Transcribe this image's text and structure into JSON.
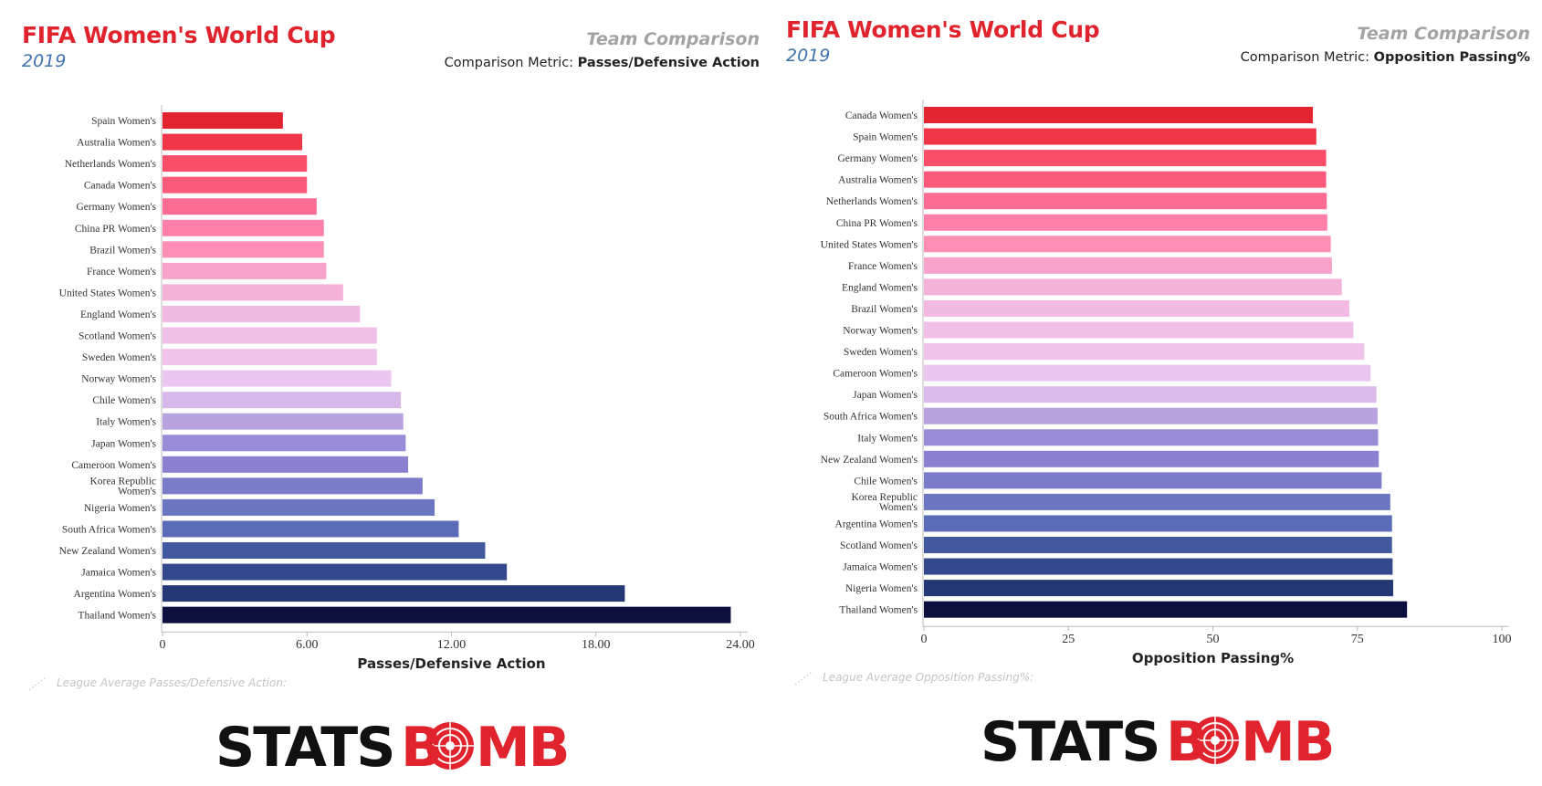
{
  "panels": [
    {
      "title": "FIFA Women's World Cup",
      "subtitle": "2019",
      "comparison_title": "Team Comparison",
      "metric_prefix": "Comparison Metric:",
      "metric_name": "Passes/Defensive Action",
      "league_note": "League Average Passes/Defensive Action:",
      "logo": {
        "left": "STATS",
        "b": "B",
        "right": "MB"
      }
    },
    {
      "title": "FIFA Women's World Cup",
      "subtitle": "2019",
      "comparison_title": "Team Comparison",
      "metric_prefix": "Comparison Metric:",
      "metric_name": "Opposition Passing%",
      "league_note": "League Average Opposition Passing%:",
      "logo": {
        "left": "STATS",
        "b": "B",
        "right": "MB"
      }
    }
  ],
  "colors": {
    "brand_red": "#e0232c",
    "logo_black": "#111111"
  },
  "chart_data": [
    {
      "type": "bar",
      "orientation": "horizontal",
      "xlabel": "Passes/Defensive Action",
      "xlim": [
        0,
        24
      ],
      "xticks": [
        "0",
        "6.00",
        "12.00",
        "18.00",
        "24.00"
      ],
      "xtick_values": [
        0,
        6,
        12,
        18,
        24
      ],
      "categories": [
        "Spain Women's",
        "Australia Women's",
        "Netherlands Women's",
        "Canada Women's",
        "Germany Women's",
        "China PR Women's",
        "Brazil Women's",
        "France Women's",
        "United States Women's",
        "England Women's",
        "Scotland Women's",
        "Sweden Women's",
        "Norway Women's",
        "Chile Women's",
        "Italy Women's",
        "Japan Women's",
        "Cameroon Women's",
        "Korea Republic Women's",
        "Nigeria Women's",
        "South Africa Women's",
        "New Zealand Women's",
        "Jamaica Women's",
        "Argentina Women's",
        "Thailand Women's"
      ],
      "values": [
        5.0,
        5.8,
        6.0,
        6.0,
        6.4,
        6.7,
        6.7,
        6.8,
        7.5,
        8.2,
        8.9,
        8.9,
        9.5,
        9.9,
        10.0,
        10.1,
        10.2,
        10.8,
        11.3,
        12.3,
        13.4,
        14.3,
        19.2,
        23.6
      ],
      "colors": [
        "#e22530",
        "#f13548",
        "#f94d68",
        "#fb5a7a",
        "#fd6c92",
        "#fe80a8",
        "#fd8eb6",
        "#f7a2cb",
        "#f4b2d9",
        "#f2bae3",
        "#f0bfe8",
        "#efc3ec",
        "#eac6f0",
        "#d6b8eb",
        "#b8a2e0",
        "#9a8bd6",
        "#8a82d0",
        "#7a7bc9",
        "#6b76c3",
        "#5a6bb8",
        "#43599f",
        "#33498b",
        "#233875",
        "#0c0f3e"
      ]
    },
    {
      "type": "bar",
      "orientation": "horizontal",
      "xlabel": "Opposition Passing%",
      "xlim": [
        0,
        100
      ],
      "xticks": [
        "0",
        "25",
        "50",
        "75",
        "100"
      ],
      "xtick_values": [
        0,
        25,
        50,
        75,
        100
      ],
      "categories": [
        "Canada Women's",
        "Spain Women's",
        "Germany Women's",
        "Australia Women's",
        "Netherlands Women's",
        "China PR Women's",
        "United States Women's",
        "France Women's",
        "England Women's",
        "Brazil Women's",
        "Norway Women's",
        "Sweden Women's",
        "Cameroon Women's",
        "Japan Women's",
        "South Africa Women's",
        "Italy Women's",
        "New Zealand Women's",
        "Chile Women's",
        "Korea Republic Women's",
        "Argentina Women's",
        "Scotland Women's",
        "Jamaica Women's",
        "Nigeria Women's",
        "Thailand Women's"
      ],
      "values": [
        67.3,
        67.9,
        69.6,
        69.6,
        69.7,
        69.8,
        70.4,
        70.6,
        72.3,
        73.6,
        74.3,
        76.2,
        77.3,
        78.3,
        78.5,
        78.6,
        78.7,
        79.2,
        80.7,
        81.0,
        81.0,
        81.1,
        81.2,
        83.6
      ],
      "colors": [
        "#e22530",
        "#f13548",
        "#f94d68",
        "#fb5a7a",
        "#fd6c92",
        "#fe80a8",
        "#fd8eb6",
        "#f7a2cb",
        "#f4b2d9",
        "#f2bae3",
        "#f0bfe8",
        "#efc3ec",
        "#eac6f0",
        "#dcbbea",
        "#b8a2e0",
        "#9a8bd6",
        "#8a82d0",
        "#7a7bc9",
        "#6b76c3",
        "#5a6bb8",
        "#43599f",
        "#33498b",
        "#233875",
        "#0c0f3e"
      ]
    }
  ]
}
